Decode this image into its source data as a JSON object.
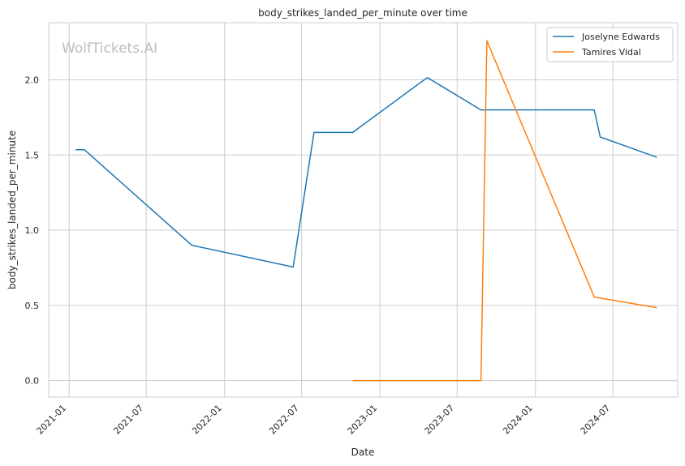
{
  "chart_data": {
    "type": "line",
    "title": "body_strikes_landed_per_minute over time",
    "xlabel": "Date",
    "ylabel": "body_strikes_landed_per_minute",
    "watermark": "WolfTickets.AI",
    "x_ticks": [
      "2021-01",
      "2021-07",
      "2022-01",
      "2022-07",
      "2023-01",
      "2023-07",
      "2024-01",
      "2024-07"
    ],
    "y_ticks": [
      "0.0",
      "0.5",
      "1.0",
      "1.5",
      "2.0"
    ],
    "xlim": [
      "2020-11-14",
      "2024-11-30"
    ],
    "ylim": [
      -0.11,
      2.38
    ],
    "grid": true,
    "legend_position": "top-right",
    "series": [
      {
        "name": "Joselyne Edwards",
        "color": "#1f77b4",
        "x": [
          "2021-01-16",
          "2021-02-06",
          "2021-10-16",
          "2022-06-11",
          "2022-07-30",
          "2022-10-29",
          "2023-04-22",
          "2023-08-26",
          "2023-09-16",
          "2024-05-18",
          "2024-06-01",
          "2024-10-12"
        ],
        "y": [
          1.535,
          1.535,
          0.9,
          0.755,
          1.65,
          1.65,
          2.015,
          1.8,
          1.8,
          1.8,
          1.62,
          1.485
        ]
      },
      {
        "name": "Tamires Vidal",
        "color": "#ff7f0e",
        "x": [
          "2022-10-29",
          "2023-08-26",
          "2023-09-09",
          "2024-05-18",
          "2024-10-12"
        ],
        "y": [
          0.0,
          0.0,
          2.26,
          0.555,
          0.485
        ]
      }
    ]
  }
}
